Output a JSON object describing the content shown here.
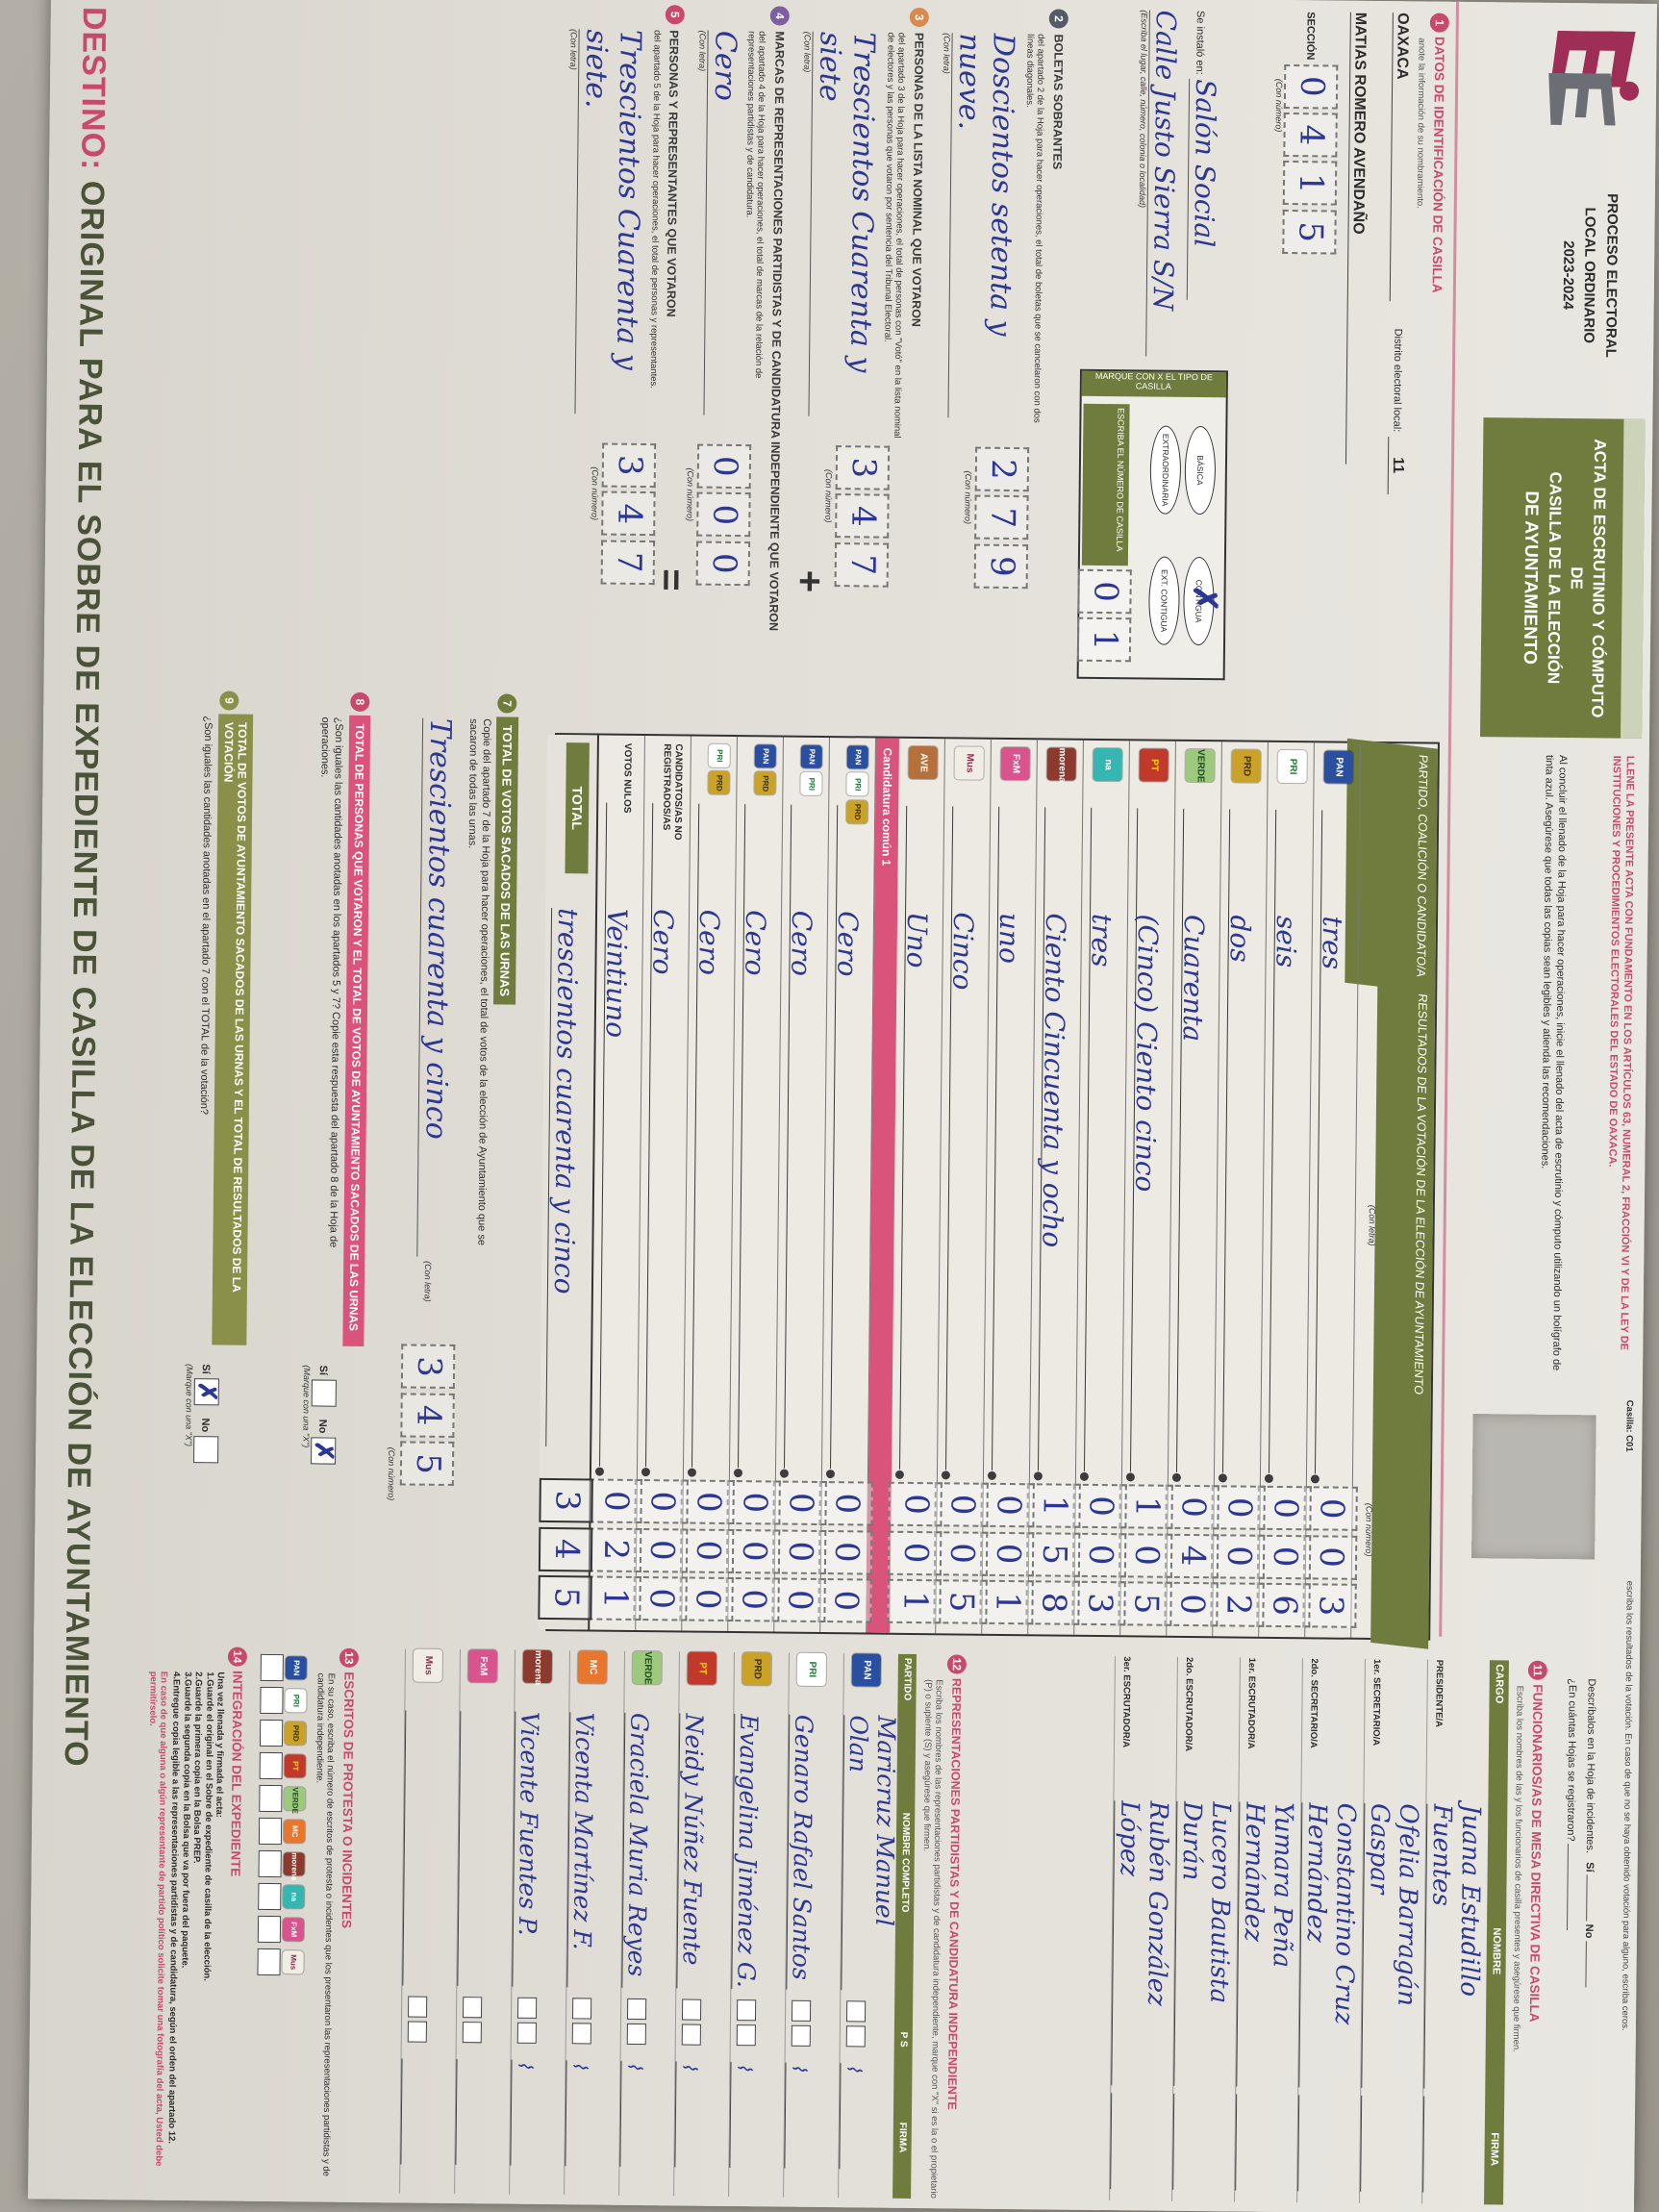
{
  "photo": {
    "surface_name": "gray-table-surface"
  },
  "header": {
    "process_line1": "PROCESO ELECTORAL",
    "process_line2": "LOCAL ORDINARIO",
    "process_line3": "2023-2024",
    "title_line1": "ACTA DE ESCRUTINIO Y CÓMPUTO DE",
    "title_line2": "CASILLA DE LA ELECCIÓN",
    "title_line3": "DE AYUNTAMIENTO",
    "legal_note": "LLENE LA PRESENTE ACTA CON FUNDAMENTO EN LOS ARTÍCULOS 63, NUMERAL 2, FRACCIÓN VI Y DE LA LEY DE INSTITUCIONES Y PROCEDIMIENTOS ELECTORALES DEL ESTADO DE OAXACA.",
    "fill_note": "Al concluir el llenado de la Hoja para hacer operaciones, inicie el llenado del acta de escrutinio y cómputo utilizando un bolígrafo de tinta azul. Asegúrese que todas las copias sean legibles y atienda las recomendaciones.",
    "casilla_tag": "Casilla: C01",
    "results_note": "escriba los resultados de la votación. En caso de que no se haya obtenido votación para alguno, escriba ceros.",
    "incident_note": "Descríbalos en la Hoja de incidentes.",
    "incident_yes": "Sí",
    "incident_no": "No",
    "incident_q": "¿En cuántas Hojas se registraron?"
  },
  "section1": {
    "number": "1",
    "title": "DATOS DE IDENTIFICACIÓN DE CASILLA",
    "note": "anote la información de su nombramiento.",
    "entity_value": "OAXACA",
    "district_label": "Distrito electoral local:",
    "district_value": "11",
    "municipality_value": "MATIAS ROMERO AVENDAÑO",
    "section_label": "SECCIÓN",
    "section_digits": "0415",
    "con_numero": "(Con número)",
    "con_letra": "(Con letra)",
    "installed_label": "Se instaló en:",
    "installed_value1": "Salón Social",
    "installed_value2": "Calle Justo Sierra S/N",
    "installed_note": "(Escriba el lugar, calle, número, colonia o localidad)",
    "marque_label": "MARQUE CON X EL TIPO DE CASILLA",
    "casilla_types": [
      "BÁSICA",
      "CONTIGUA",
      "EXTRAORDINARIA",
      "EXT. CONTIGUA"
    ],
    "casilla_marked_index": 1,
    "casilla_num_label": "ESCRIBA EL NÚMERO DE CASILLA",
    "casilla_num_digits": "01"
  },
  "left_sections": [
    {
      "number": "2",
      "color": "#555a68",
      "title": "BOLETAS SOBRANTES",
      "text": "del apartado 2 de la Hoja para hacer operaciones, el total de boletas que se cancelaron con dos líneas diagonales.",
      "letra": "Doscientos setenta y nueve.",
      "digits": "279",
      "op": ""
    },
    {
      "number": "3",
      "color": "#d98b4f",
      "title": "PERSONAS DE LA LISTA NOMINAL QUE VOTARON",
      "text": "del apartado 3 de la Hoja para hacer operaciones, el total de personas con \"Votó\" en la lista nominal de electores y las personas que votaron por sentencia del Tribunal Electoral.",
      "letra": "Trescientos Cuarenta y siete",
      "digits": "347",
      "op": "+"
    },
    {
      "number": "4",
      "color": "#7b5fa0",
      "title": "MARCAS DE REPRESENTACIONES PARTIDISTAS Y DE CANDIDATURA INDEPENDIENTE QUE VOTARON",
      "text": "del apartado 4 de la Hoja para hacer operaciones, el total de marcas de la relación de representaciones partidistas y de candidatura.",
      "letra": "Cero",
      "digits": "000",
      "op": "="
    },
    {
      "number": "5",
      "color": "#c84a6b",
      "title": "PERSONAS Y REPRESENTANTES QUE VOTARON",
      "text": "del apartado 5 de la Hoja para hacer operaciones, el total de personas y representantes.",
      "letra": "Trescientos Cuarenta y siete.",
      "digits": "347",
      "op": ""
    }
  ],
  "results": {
    "col1_header": "PARTIDO, COALICIÓN O CANDIDATO/A",
    "col2_header": "RESULTADOS DE LA VOTACIÓN DE LA ELECCIÓN DE AYUNTAMIENTO",
    "con_letra": "(Con letra)",
    "con_numero": "(Con número)",
    "comun_band": "Candidatura común 1",
    "rows": [
      {
        "logos": [
          "pan"
        ],
        "label": "PAN",
        "letra": "tres",
        "num": "003"
      },
      {
        "logos": [
          "pri"
        ],
        "label": "PRI",
        "letra": "seis",
        "num": "006"
      },
      {
        "logos": [
          "prd"
        ],
        "label": "PRD",
        "letra": "dos",
        "num": "002"
      },
      {
        "logos": [
          "pvem"
        ],
        "label": "PVEM",
        "letra": "Cuarenta",
        "num": "040"
      },
      {
        "logos": [
          "pt"
        ],
        "label": "PT",
        "letra": "(Cinco) Ciento cinco",
        "num": "105"
      },
      {
        "logos": [
          "na"
        ],
        "label": "NUEVA ALIANZA",
        "letra": "tres",
        "num": "003"
      },
      {
        "logos": [
          "morena"
        ],
        "label": "MORENA",
        "letra": "Ciento Cincuenta y ocho",
        "num": "158"
      },
      {
        "logos": [
          "fxm"
        ],
        "label": "FUERZA POR MÉXICO",
        "letra": "uno",
        "num": "001"
      },
      {
        "logos": [
          "mus"
        ],
        "label": "MUS",
        "letra": "Cinco",
        "num": "005"
      },
      {
        "logos": [
          "ave"
        ],
        "label": "PARTIDO LOCAL",
        "letra": "Uno",
        "num": "001"
      }
    ],
    "comun_rows": [
      {
        "logos": [
          "pan",
          "pri",
          "prd"
        ],
        "label": "PAN-PRI-PRD",
        "letra": "Cero",
        "num": "000"
      },
      {
        "logos": [
          "pan",
          "pri"
        ],
        "label": "PAN-PRI",
        "letra": "Cero",
        "num": "000"
      },
      {
        "logos": [
          "pan",
          "prd"
        ],
        "label": "PAN-PRD",
        "letra": "Cero",
        "num": "000"
      },
      {
        "logos": [
          "pri",
          "prd"
        ],
        "label": "PRI-PRD",
        "letra": "Cero",
        "num": "000"
      }
    ],
    "no_reg_label": "CANDIDATOS/AS NO REGISTRADOS/AS",
    "no_reg_letra": "Cero",
    "no_reg_num": "000",
    "nulos_label": "VOTOS NULOS",
    "nulos_letra": "Veintiuno",
    "nulos_num": "021",
    "total_label": "TOTAL",
    "total_letra": "trescientos cuarenta y cinco",
    "total_num": "345"
  },
  "bottom_sections": {
    "s7": {
      "number": "7",
      "title": "TOTAL DE VOTOS SACADOS DE LAS URNAS",
      "text": "Copie del apartado 7 de la Hoja para hacer operaciones, el total de votos de la elección de Ayuntamiento que se sacaron de todas las urnas.",
      "letra": "Trescientos cuarenta y cinco",
      "digits": "345",
      "con_letra": "(Con letra)",
      "con_numero": "(Con número)"
    },
    "s8": {
      "number": "8",
      "title": "TOTAL DE PERSONAS QUE VOTARON Y EL TOTAL DE VOTOS DE AYUNTAMIENTO SACADOS DE LAS URNAS",
      "text": "¿Son iguales las cantidades anotadas en los apartados 5 y 7? Copie esta respuesta del apartado 8 de la Hoja de operaciones.",
      "yes": "Sí",
      "no": "No",
      "marked": "no",
      "marque": "(Marque con una \"X\")"
    },
    "s9": {
      "number": "9",
      "title": "TOTAL DE VOTOS DE AYUNTAMIENTO SACADOS DE LAS URNAS Y EL TOTAL DE RESULTADOS DE LA VOTACIÓN",
      "text": "¿Son iguales las cantidades anotadas en el apartado 7 con el TOTAL de la votación?",
      "yes": "Sí",
      "no": "No",
      "marked": "yes",
      "marque": "(Marque con una \"X\")"
    }
  },
  "funcionarios": {
    "number": "11",
    "title": "FUNCIONARIOS/AS DE MESA DIRECTIVA DE CASILLA",
    "note": "Escriba los nombres de las y los funcionarios de casilla presentes y asegúrese que firmen.",
    "col_cargo": "CARGO",
    "col_nombre": "NOMBRE",
    "col_firma": "FIRMA",
    "rows": [
      {
        "cargo": "PRESIDENTE/A",
        "nombre": "Juana Estudillo Fuentes"
      },
      {
        "cargo": "1er. SECRETARIO/A",
        "nombre": "Ofelia Barragán Gaspar"
      },
      {
        "cargo": "2do. SECRETARIO/A",
        "nombre": "Constantino Cruz Hernández"
      },
      {
        "cargo": "1er. ESCRUTADOR/A",
        "nombre": "Yumara Peña Hernández"
      },
      {
        "cargo": "2do. ESCRUTADOR/A",
        "nombre": "Lucero Bautista Durán"
      },
      {
        "cargo": "3er. ESCRUTADOR/A",
        "nombre": "Rubén González López"
      }
    ]
  },
  "representantes": {
    "number": "12",
    "title": "REPRESENTACIONES PARTIDISTAS Y DE CANDIDATURA INDEPENDIENTE",
    "note": "Escriba los nombres de las representaciones partidistas y de candidatura independiente, marque con \"X\" si es la o el propietario (P) o suplente (S) y asegúrese que firmen.",
    "col_partido": "PARTIDO",
    "col_nombre": "NOMBRE COMPLETO",
    "col_ps": "P  S",
    "col_firma": "FIRMA",
    "rows": [
      {
        "logo": "pan",
        "nombre": "Maricruz Manuel Olan"
      },
      {
        "logo": "pri",
        "nombre": "Genaro Rafael Santos"
      },
      {
        "logo": "prd",
        "nombre": "Evangelina Jiménez G."
      },
      {
        "logo": "pt",
        "nombre": "Neidy Núñez Fuente"
      },
      {
        "logo": "pvem",
        "nombre": "Graciela Muria Reyes"
      },
      {
        "logo": "mc",
        "nombre": "Vicenta Martínez F."
      },
      {
        "logo": "morena",
        "nombre": "Vicente Fuentes P."
      },
      {
        "logo": "fxm",
        "nombre": ""
      },
      {
        "logo": "mus",
        "nombre": ""
      }
    ]
  },
  "escritos": {
    "number": "13",
    "title": "ESCRITOS DE PROTESTA O INCIDENTES",
    "text": "En su caso, escriba el número de escritos de protesta o incidentes que los presentaron las representaciones partidistas y de candidatura independiente.",
    "logos": [
      "pan",
      "pri",
      "prd",
      "pt",
      "pvem",
      "mc",
      "morena",
      "na",
      "fxm",
      "mus"
    ]
  },
  "integracion": {
    "number": "14",
    "title": "INTEGRACIÓN DEL EXPEDIENTE",
    "intro": "Una vez llenada y firmada el acta:",
    "items": [
      "1.Guarde el original en el Sobre de expediente de casilla de la elección.",
      "2.Guarde la primera copia en la Bolsa PREP.",
      "3.Guarde la segunda copia en la Bolsa que va por fuera del paquete.",
      "4.Entregue copia legible a las representaciones partidistas y de candidatura, según el orden del apartado 12."
    ],
    "note": "En caso de que alguna o algún representante de partido político solicite tomar una fotografía del acta, Usted debe permitírselo."
  },
  "destino": {
    "label": "DESTINO:",
    "text": "ORIGINAL PARA EL SOBRE DE EXPEDIENTE DE CASILLA DE LA ELECCIÓN DE AYUNTAMIENTO"
  },
  "party_logos": {
    "pan": {
      "bg": "#2b4fa0",
      "fg": "#ffffff",
      "txt": "PAN"
    },
    "pri": {
      "bg": "#ffffff",
      "fg": "#1e7a34",
      "txt": "PRI"
    },
    "prd": {
      "bg": "#c9a227",
      "fg": "#3a3000",
      "txt": "PRD"
    },
    "pvem": {
      "bg": "#9dc97e",
      "fg": "#1f4d1f",
      "txt": "VERDE"
    },
    "pt": {
      "bg": "#c0392b",
      "fg": "#ffd700",
      "txt": "PT"
    },
    "na": {
      "bg": "#35b6b0",
      "fg": "#ffffff",
      "txt": "na"
    },
    "morena": {
      "bg": "#8c3a2e",
      "fg": "#ffffff",
      "txt": "morena"
    },
    "fxm": {
      "bg": "#d9538c",
      "fg": "#ffffff",
      "txt": "FxM"
    },
    "mus": {
      "bg": "#f0ede5",
      "fg": "#8c2f4f",
      "txt": "Mus"
    },
    "ave": {
      "bg": "#b5703c",
      "fg": "#ffffff",
      "txt": "AVE"
    },
    "mc": {
      "bg": "#e8762d",
      "fg": "#ffffff",
      "txt": "MC"
    }
  }
}
